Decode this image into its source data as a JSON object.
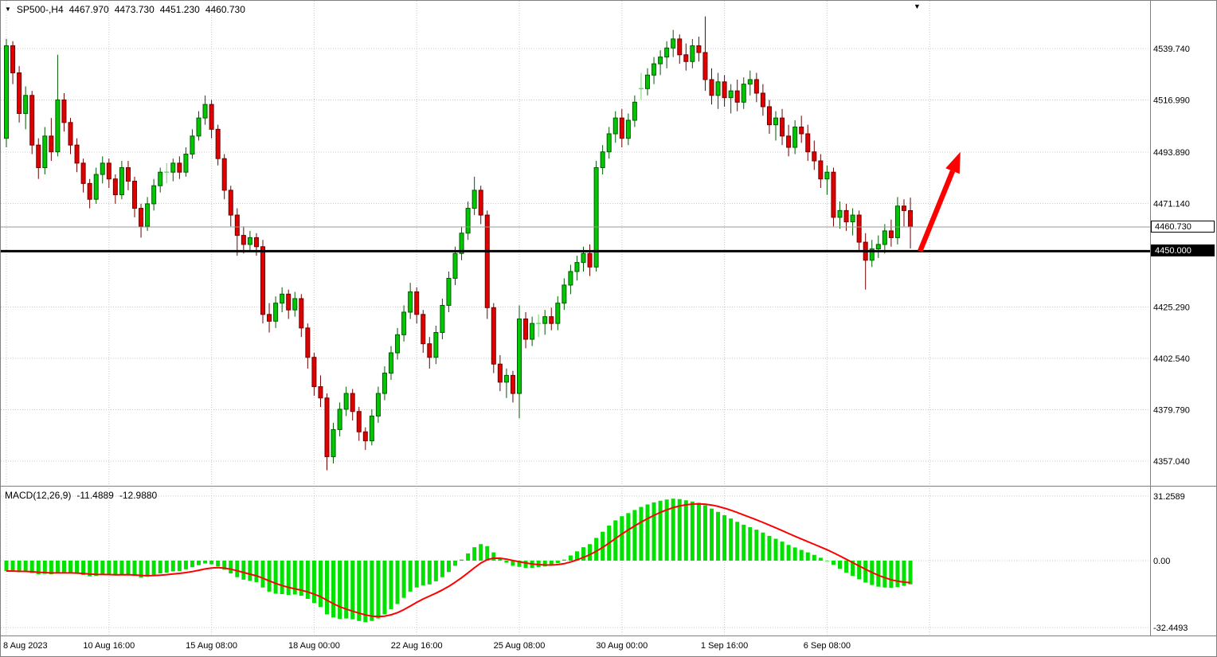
{
  "chart_header": {
    "symbol_period": "SP500-,H4",
    "open": "4467.970",
    "high": "4473.730",
    "low": "4451.230",
    "close": "4460.730"
  },
  "indicator_header": {
    "label": "MACD(12,26,9)",
    "macd_value": "-11.4889",
    "signal_value": "-12.9880"
  },
  "price_axis": {
    "labels": [
      "4539.740",
      "4516.990",
      "4493.890",
      "4471.140",
      "4425.290",
      "4402.540",
      "4379.790",
      "4357.040"
    ],
    "current_price_label": "4460.730",
    "support_label": "4450.000"
  },
  "macd_axis": {
    "labels": [
      "31.2589",
      "0.00",
      "-32.4493"
    ]
  },
  "time_axis": {
    "labels": [
      "8 Aug 2023",
      "10 Aug 16:00",
      "15 Aug 08:00",
      "18 Aug 00:00",
      "22 Aug 16:00",
      "25 Aug 08:00",
      "30 Aug 00:00",
      "1 Sep 16:00",
      "6 Sep 08:00"
    ]
  },
  "icons": {
    "dropdown_arrow": "▼",
    "shift_marker": "▼"
  },
  "colors": {
    "bull_fill": "#00C800",
    "bull_stroke": "#005A00",
    "bear_fill": "#E00000",
    "bear_stroke": "#700000",
    "doji": "#6FD66F",
    "histogram": "#00E100",
    "signal": "#FF0000",
    "support": "#000000",
    "current": "#999999",
    "grid": "#C9C9C9",
    "divider": "#808080",
    "arrow": "#FF0000"
  },
  "chart_data": {
    "type": "candlestick",
    "symbol": "SP500-",
    "timeframe": "H4",
    "ohlc_current": {
      "open": 4467.97,
      "high": 4473.73,
      "low": 4451.23,
      "close": 4460.73
    },
    "price_gridlines": [
      4539.74,
      4516.99,
      4493.89,
      4471.14,
      4425.29,
      4402.54,
      4379.79,
      4357.04
    ],
    "current_price": 4460.73,
    "support_line": 4450.0,
    "time_tick_bar_indexes": [
      0,
      16,
      32,
      48,
      64,
      80,
      96,
      112,
      128,
      144
    ],
    "candles": [
      [
        4500,
        4544,
        4496,
        4541
      ],
      [
        4541,
        4543,
        4524,
        4529
      ],
      [
        4529,
        4532,
        4507,
        4511
      ],
      [
        4511,
        4523,
        4504,
        4519
      ],
      [
        4519,
        4521,
        4493,
        4497
      ],
      [
        4497,
        4500,
        4482,
        4487
      ],
      [
        4487,
        4505,
        4484,
        4501
      ],
      [
        4501,
        4509,
        4490,
        4494
      ],
      [
        4494,
        4537,
        4492,
        4517
      ],
      [
        4517,
        4520,
        4503,
        4507
      ],
      [
        4507,
        4509,
        4493,
        4497
      ],
      [
        4497,
        4500,
        4485,
        4489
      ],
      [
        4489,
        4491,
        4476,
        4480
      ],
      [
        4480,
        4482,
        4469,
        4473
      ],
      [
        4473,
        4487,
        4471,
        4484
      ],
      [
        4484,
        4492,
        4480,
        4489
      ],
      [
        4489,
        4491,
        4478,
        4482
      ],
      [
        4482,
        4484,
        4471,
        4475
      ],
      [
        4475,
        4490,
        4473,
        4487
      ],
      [
        4487,
        4490,
        4477,
        4481
      ],
      [
        4481,
        4483,
        4465,
        4469
      ],
      [
        4469,
        4471,
        4456,
        4461
      ],
      [
        4461,
        4474,
        4459,
        4471
      ],
      [
        4471,
        4482,
        4468,
        4479
      ],
      [
        4479,
        4487,
        4476,
        4485
      ],
      [
        4485,
        4489,
        4480,
        4485
      ],
      [
        4485,
        4491,
        4481,
        4489
      ],
      [
        4489,
        4492,
        4482,
        4485
      ],
      [
        4485,
        4496,
        4483,
        4493
      ],
      [
        4493,
        4504,
        4491,
        4501
      ],
      [
        4501,
        4512,
        4499,
        4509
      ],
      [
        4509,
        4519,
        4506,
        4515
      ],
      [
        4515,
        4517,
        4500,
        4504
      ],
      [
        4504,
        4506,
        4488,
        4491
      ],
      [
        4491,
        4493,
        4473,
        4477
      ],
      [
        4477,
        4479,
        4461,
        4466
      ],
      [
        4466,
        4469,
        4448,
        4457
      ],
      [
        4457,
        4461,
        4449,
        4453
      ],
      [
        4453,
        4459,
        4450,
        4456
      ],
      [
        4456,
        4458,
        4448,
        4452
      ],
      [
        4452,
        4455,
        4418,
        4422
      ],
      [
        4422,
        4427,
        4414,
        4419
      ],
      [
        4419,
        4430,
        4416,
        4427
      ],
      [
        4427,
        4434,
        4423,
        4431
      ],
      [
        4431,
        4433,
        4420,
        4424
      ],
      [
        4424,
        4432,
        4421,
        4429
      ],
      [
        4429,
        4431,
        4412,
        4416
      ],
      [
        4416,
        4418,
        4398,
        4403
      ],
      [
        4403,
        4405,
        4386,
        4390
      ],
      [
        4390,
        4395,
        4381,
        4385
      ],
      [
        4385,
        4387,
        4353,
        4359
      ],
      [
        4359,
        4374,
        4356,
        4371
      ],
      [
        4371,
        4383,
        4368,
        4380
      ],
      [
        4380,
        4390,
        4377,
        4387
      ],
      [
        4387,
        4389,
        4375,
        4379
      ],
      [
        4379,
        4381,
        4366,
        4370
      ],
      [
        4370,
        4372,
        4362,
        4366
      ],
      [
        4366,
        4380,
        4364,
        4377
      ],
      [
        4377,
        4390,
        4374,
        4387
      ],
      [
        4387,
        4399,
        4384,
        4396
      ],
      [
        4396,
        4408,
        4393,
        4405
      ],
      [
        4405,
        4416,
        4402,
        4413
      ],
      [
        4413,
        4426,
        4410,
        4423
      ],
      [
        4423,
        4436,
        4420,
        4432
      ],
      [
        4432,
        4434,
        4418,
        4422
      ],
      [
        4422,
        4424,
        4405,
        4409
      ],
      [
        4409,
        4412,
        4398,
        4403
      ],
      [
        4403,
        4417,
        4400,
        4414
      ],
      [
        4414,
        4429,
        4411,
        4426
      ],
      [
        4426,
        4441,
        4423,
        4438
      ],
      [
        4438,
        4452,
        4435,
        4449
      ],
      [
        4449,
        4461,
        4446,
        4458
      ],
      [
        4458,
        4472,
        4455,
        4469
      ],
      [
        4469,
        4483,
        4466,
        4477
      ],
      [
        4477,
        4479,
        4462,
        4466
      ],
      [
        4466,
        4468,
        4420,
        4425
      ],
      [
        4425,
        4427,
        4396,
        4400
      ],
      [
        4400,
        4404,
        4388,
        4392
      ],
      [
        4392,
        4398,
        4385,
        4395
      ],
      [
        4395,
        4397,
        4383,
        4387
      ],
      [
        4387,
        4426,
        4376,
        4420
      ],
      [
        4420,
        4423,
        4407,
        4411
      ],
      [
        4411,
        4421,
        4408,
        4418
      ],
      [
        4418,
        4422,
        4412,
        4418
      ],
      [
        4418,
        4424,
        4413,
        4421
      ],
      [
        4421,
        4425,
        4415,
        4418
      ],
      [
        4418,
        4430,
        4415,
        4427
      ],
      [
        4427,
        4438,
        4424,
        4435
      ],
      [
        4435,
        4444,
        4431,
        4441
      ],
      [
        4441,
        4448,
        4437,
        4445
      ],
      [
        4445,
        4452,
        4441,
        4449
      ],
      [
        4449,
        4453,
        4439,
        4443
      ],
      [
        4443,
        4490,
        4441,
        4487
      ],
      [
        4487,
        4497,
        4484,
        4494
      ],
      [
        4494,
        4505,
        4491,
        4502
      ],
      [
        4502,
        4512,
        4498,
        4509
      ],
      [
        4509,
        4513,
        4496,
        4500
      ],
      [
        4500,
        4511,
        4497,
        4508
      ],
      [
        4508,
        4519,
        4505,
        4516
      ],
      [
        4522,
        4529,
        4517,
        4522
      ],
      [
        4522,
        4531,
        4519,
        4528
      ],
      [
        4528,
        4536,
        4524,
        4533
      ],
      [
        4533,
        4539,
        4528,
        4536
      ],
      [
        4536,
        4543,
        4531,
        4540
      ],
      [
        4540,
        4548,
        4536,
        4544
      ],
      [
        4544,
        4546,
        4533,
        4537
      ],
      [
        4537,
        4542,
        4530,
        4534
      ],
      [
        4534,
        4544,
        4531,
        4541
      ],
      [
        4541,
        4545,
        4534,
        4538
      ],
      [
        4538,
        4554,
        4521,
        4526
      ],
      [
        4526,
        4531,
        4515,
        4519
      ],
      [
        4519,
        4529,
        4513,
        4525
      ],
      [
        4525,
        4528,
        4514,
        4518
      ],
      [
        4518,
        4524,
        4511,
        4521
      ],
      [
        4521,
        4526,
        4512,
        4516
      ],
      [
        4516,
        4527,
        4513,
        4524
      ],
      [
        4524,
        4530,
        4519,
        4526
      ],
      [
        4526,
        4529,
        4516,
        4520
      ],
      [
        4520,
        4524,
        4510,
        4514
      ],
      [
        4514,
        4517,
        4502,
        4506
      ],
      [
        4506,
        4512,
        4499,
        4509
      ],
      [
        4509,
        4513,
        4497,
        4501
      ],
      [
        4501,
        4506,
        4492,
        4496
      ],
      [
        4496,
        4508,
        4493,
        4505
      ],
      [
        4505,
        4510,
        4498,
        4502
      ],
      [
        4502,
        4506,
        4490,
        4494
      ],
      [
        4494,
        4499,
        4486,
        4490
      ],
      [
        4490,
        4493,
        4478,
        4482
      ],
      [
        4482,
        4488,
        4475,
        4485
      ],
      [
        4485,
        4487,
        4461,
        4465
      ],
      [
        4465,
        4472,
        4460,
        4468
      ],
      [
        4468,
        4471,
        4459,
        4463
      ],
      [
        4463,
        4469,
        4457,
        4466
      ],
      [
        4466,
        4468,
        4450,
        4454
      ],
      [
        4454,
        4458,
        4433,
        4446
      ],
      [
        4446,
        4455,
        4443,
        4451
      ],
      [
        4451,
        4457,
        4447,
        4453
      ],
      [
        4453,
        4462,
        4449,
        4459
      ],
      [
        4459,
        4464,
        4452,
        4456
      ],
      [
        4456,
        4474,
        4453,
        4470
      ],
      [
        4470,
        4473,
        4461,
        4468
      ],
      [
        4467.97,
        4473.73,
        4451.23,
        4460.73
      ]
    ],
    "macd": {
      "params": "12,26,9",
      "levels": [
        31.2589,
        0,
        -32.4493
      ],
      "signal_period": 9,
      "histogram": [
        -5,
        -5.2,
        -5.6,
        -5.5,
        -6,
        -6.6,
        -6.4,
        -6.6,
        -6,
        -5.8,
        -6,
        -6.4,
        -7,
        -7.6,
        -7.4,
        -6.9,
        -6.8,
        -7.2,
        -6.8,
        -6.7,
        -7.4,
        -8.2,
        -7.8,
        -7,
        -6.2,
        -5.8,
        -5.2,
        -5,
        -4.2,
        -3.2,
        -2.2,
        -1.4,
        -1.8,
        -2.8,
        -4.4,
        -6.2,
        -8,
        -9.2,
        -9.8,
        -10.4,
        -13,
        -15,
        -16,
        -16.2,
        -16.6,
        -16.4,
        -17,
        -18.5,
        -20.5,
        -22.5,
        -26,
        -27.5,
        -28.2,
        -28,
        -28.4,
        -29.2,
        -29.8,
        -29.2,
        -28,
        -26,
        -23.5,
        -21,
        -18,
        -15,
        -13,
        -12,
        -11.5,
        -10,
        -8,
        -5.5,
        -2.5,
        0.5,
        3.5,
        6.5,
        8,
        7,
        4,
        1,
        -1,
        -2.5,
        -3,
        -3.5,
        -3.5,
        -3.2,
        -2.8,
        -2.2,
        -1.2,
        0.5,
        2.5,
        4.5,
        6.5,
        8,
        11,
        14,
        17,
        19.5,
        21.5,
        23,
        24.5,
        26,
        27.2,
        28.2,
        29,
        29.6,
        30,
        29.8,
        29.2,
        28.6,
        28,
        26.8,
        25.2,
        23.6,
        22,
        20.4,
        18.8,
        17.4,
        16.2,
        15,
        13.6,
        12,
        10.6,
        9.2,
        7.6,
        6.4,
        5.2,
        4,
        2.8,
        1.4,
        0,
        -2,
        -4,
        -5.8,
        -7.4,
        -9,
        -10.6,
        -11.8,
        -12.6,
        -13,
        -13.2,
        -12.8,
        -12.2,
        -11.4889
      ]
    },
    "annotations": {
      "arrow": {
        "from_bar": 142.5,
        "from_price": 4450,
        "to_bar": 148.8,
        "to_price": 4494
      }
    }
  }
}
